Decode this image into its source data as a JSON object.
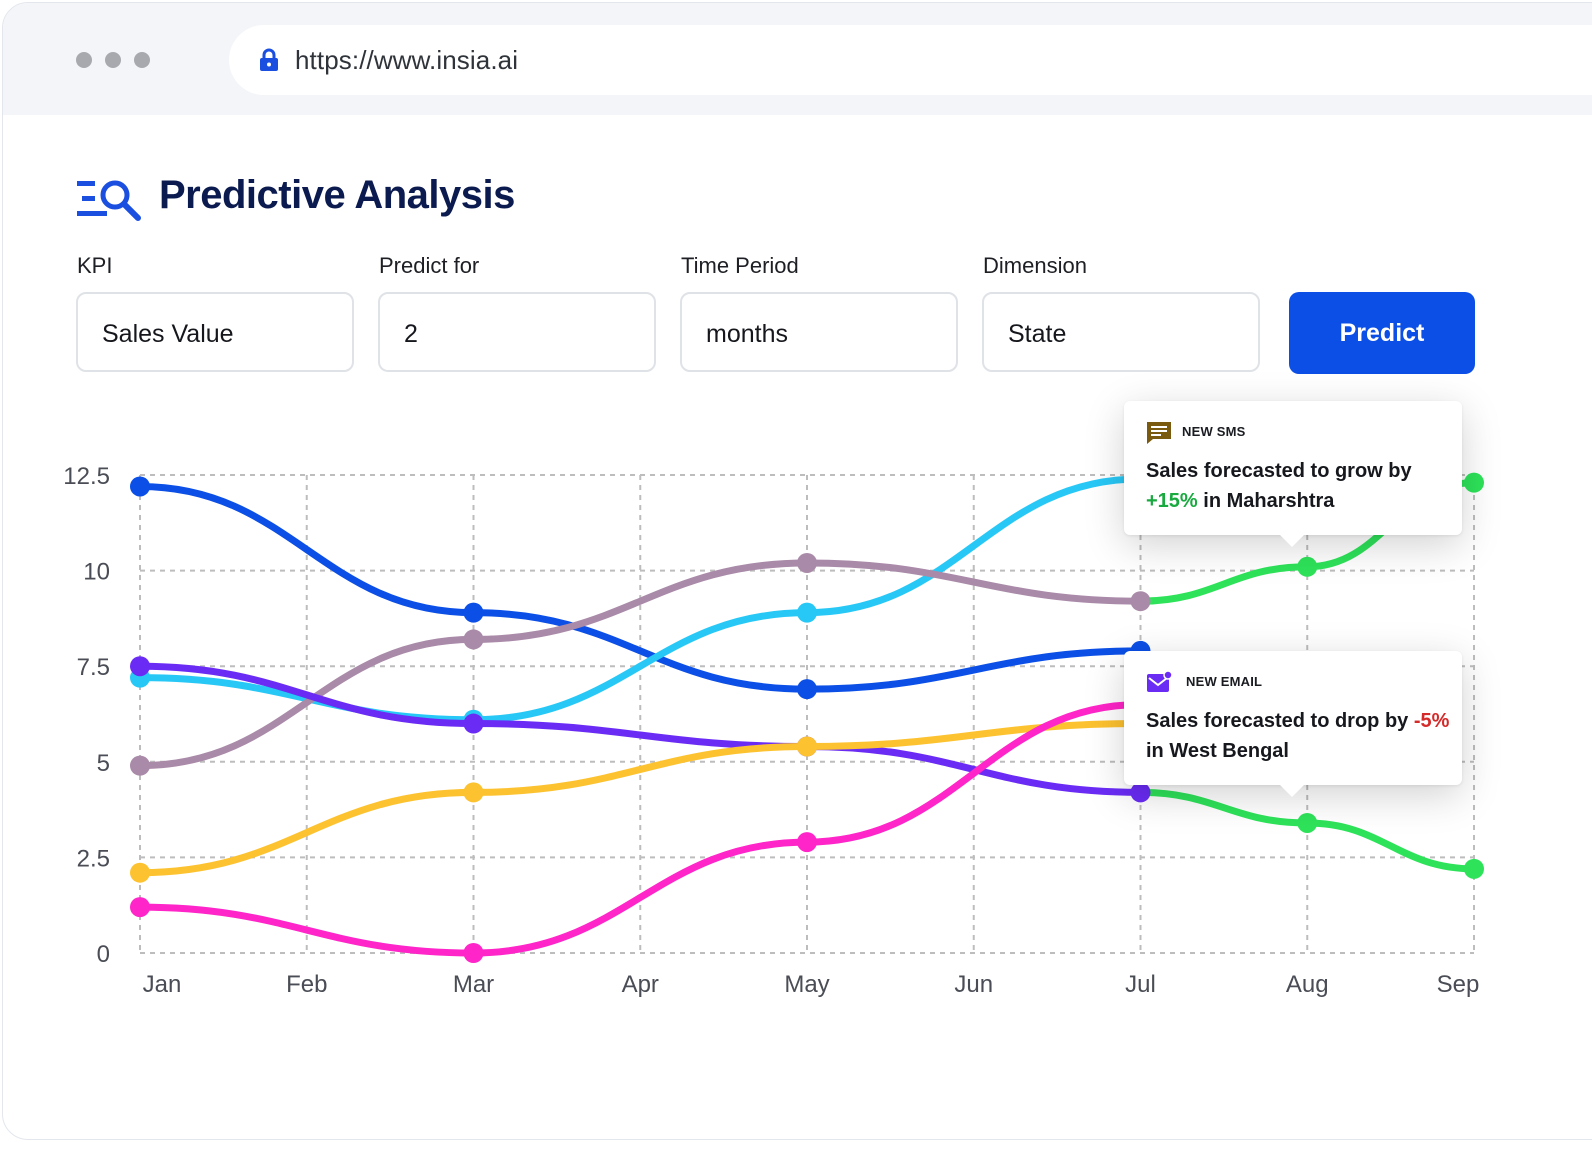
{
  "browser": {
    "url": "https://www.insia.ai",
    "icons": [
      "lock-icon"
    ]
  },
  "header": {
    "title": "Predictive Analysis",
    "icon": "search-list-icon",
    "accent": "#1a4fe0"
  },
  "form": {
    "kpi": {
      "label": "KPI",
      "value": "Sales Value"
    },
    "predict_for": {
      "label": "Predict for",
      "value": "2"
    },
    "time_period": {
      "label": "Time Period",
      "value": "months"
    },
    "dimension": {
      "label": "Dimension",
      "value": "State"
    },
    "predict_label": "Predict",
    "predict_color": "#0b4fe6"
  },
  "notifications": {
    "sms": {
      "tag": "NEW SMS",
      "icon": "message-icon",
      "msg_pre": "Sales forecasted to grow by ",
      "msg_value": "+15%",
      "msg_post": " in Maharshtra",
      "value_color": "#18a93f"
    },
    "email": {
      "tag": "NEW EMAIL",
      "icon": "email-icon",
      "msg_pre": "Sales forecasted to drop by ",
      "msg_value": "-5%",
      "msg_post": " in West Bengal",
      "value_color": "#d42a2a"
    }
  },
  "chart_data": {
    "type": "line",
    "categories": [
      "Jan",
      "Feb",
      "Mar",
      "Apr",
      "May",
      "Jun",
      "Jul",
      "Aug",
      "Sep"
    ],
    "yticks": [
      "12.5",
      "10",
      "7.5",
      "5",
      "2.5",
      "0"
    ],
    "ylim": [
      0,
      12.5
    ],
    "grid": true,
    "forecast_color": "#2ee35a",
    "series": [
      {
        "color": "#0b4fe6",
        "values": [
          12.2,
          null,
          8.9,
          null,
          6.9,
          null,
          7.9,
          null,
          null
        ]
      },
      {
        "color": "#28c8f6",
        "values": [
          7.2,
          null,
          6.1,
          null,
          8.9,
          null,
          12.4,
          null,
          null
        ]
      },
      {
        "color": "#a98aa8",
        "values": [
          4.9,
          null,
          8.2,
          null,
          10.2,
          null,
          9.2,
          null,
          null
        ],
        "forecast": [
          9.2,
          10.1,
          12.3
        ]
      },
      {
        "color": "#6a2cf5",
        "values": [
          7.5,
          null,
          6.0,
          null,
          5.4,
          null,
          4.2,
          null,
          null
        ],
        "forecast": [
          4.2,
          3.4,
          2.2
        ]
      },
      {
        "color": "#fdc22f",
        "values": [
          2.1,
          null,
          4.2,
          null,
          5.4,
          null,
          6.0,
          null,
          null
        ]
      },
      {
        "color": "#ff25c8",
        "values": [
          1.2,
          null,
          0.0,
          null,
          2.9,
          null,
          6.5,
          null,
          null
        ]
      }
    ]
  }
}
